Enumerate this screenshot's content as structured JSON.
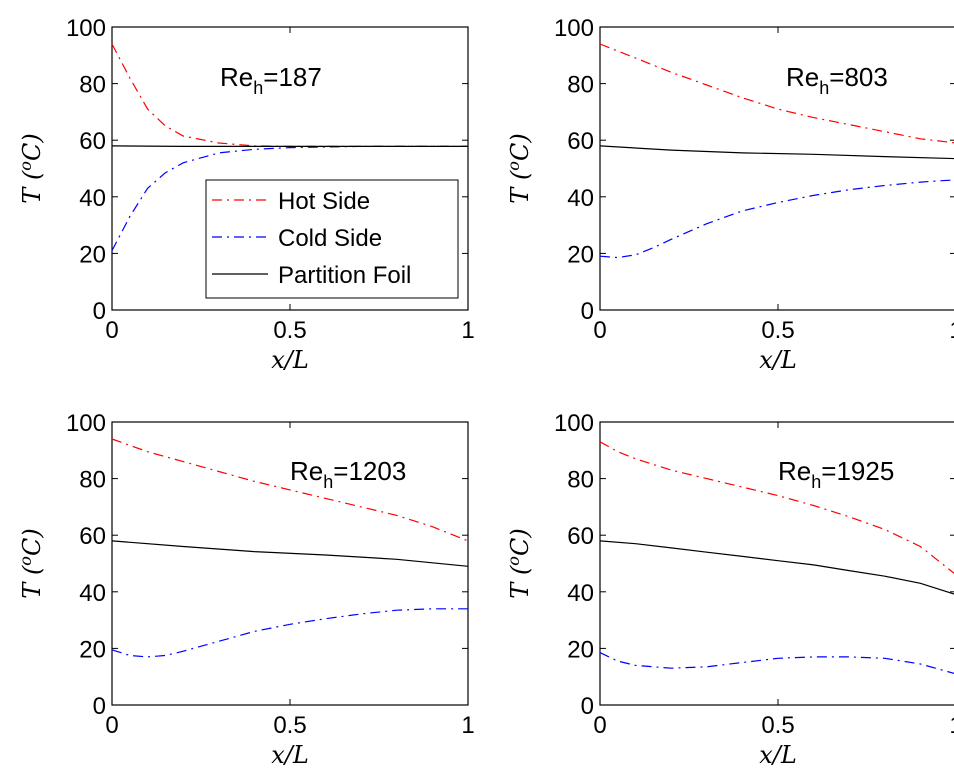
{
  "chart_data": [
    {
      "type": "line",
      "annotation": {
        "base": "Re",
        "sub": "h",
        "value": "=187"
      },
      "xlabel": "x/L",
      "ylabel": "T (oC)",
      "xlim": [
        0,
        1
      ],
      "ylim": [
        0,
        100
      ],
      "xticks": [
        "0",
        "0.5",
        "1"
      ],
      "yticks": [
        "0",
        "20",
        "40",
        "60",
        "80",
        "100"
      ],
      "legend": {
        "position": "lower-right",
        "entries": [
          "Hot Side",
          "Cold Side",
          "Partition Foil"
        ]
      },
      "series": [
        {
          "name": "Hot Side",
          "x": [
            0,
            0.05,
            0.1,
            0.15,
            0.2,
            0.3,
            0.4,
            0.5,
            0.7,
            1.0
          ],
          "values": [
            94,
            82,
            71,
            65,
            61.5,
            59,
            58,
            57.8,
            57.8,
            57.8
          ]
        },
        {
          "name": "Cold Side",
          "x": [
            0,
            0.05,
            0.1,
            0.15,
            0.2,
            0.3,
            0.4,
            0.5,
            0.7,
            1.0
          ],
          "values": [
            21,
            33,
            43,
            48.5,
            52,
            55.5,
            56.8,
            57.4,
            57.8,
            57.8
          ]
        },
        {
          "name": "Partition Foil",
          "x": [
            0,
            0.2,
            0.4,
            0.6,
            1.0
          ],
          "values": [
            58,
            57.8,
            57.8,
            57.8,
            57.8
          ]
        }
      ]
    },
    {
      "type": "line",
      "annotation": {
        "base": "Re",
        "sub": "h",
        "value": "=803"
      },
      "xlabel": "x/L",
      "ylabel": "T (oC)",
      "xlim": [
        0,
        1
      ],
      "ylim": [
        0,
        100
      ],
      "xticks": [
        "0",
        "0.5",
        "1"
      ],
      "yticks": [
        "0",
        "20",
        "40",
        "60",
        "80",
        "100"
      ],
      "series": [
        {
          "name": "Hot Side",
          "x": [
            0,
            0.1,
            0.2,
            0.3,
            0.4,
            0.5,
            0.6,
            0.7,
            0.8,
            0.9,
            1.0
          ],
          "values": [
            94,
            89,
            84,
            79.5,
            75,
            71,
            68,
            65.5,
            63,
            60.5,
            59
          ]
        },
        {
          "name": "Cold Side",
          "x": [
            0,
            0.05,
            0.1,
            0.15,
            0.2,
            0.3,
            0.4,
            0.5,
            0.6,
            0.7,
            0.8,
            0.9,
            1.0
          ],
          "values": [
            19,
            18.5,
            19.5,
            22,
            25,
            30.5,
            35,
            38,
            40.5,
            42.5,
            44,
            45.2,
            46
          ]
        },
        {
          "name": "Partition Foil",
          "x": [
            0,
            0.2,
            0.4,
            0.6,
            0.8,
            1.0
          ],
          "values": [
            58,
            56.5,
            55.5,
            55,
            54.2,
            53.5
          ]
        }
      ]
    },
    {
      "type": "line",
      "annotation": {
        "base": "Re",
        "sub": "h",
        "value": "=1203"
      },
      "xlabel": "x/L",
      "ylabel": "T (oC)",
      "xlim": [
        0,
        1
      ],
      "ylim": [
        0,
        100
      ],
      "xticks": [
        "0",
        "0.5",
        "1"
      ],
      "yticks": [
        "0",
        "20",
        "40",
        "60",
        "80",
        "100"
      ],
      "series": [
        {
          "name": "Hot Side",
          "x": [
            0,
            0.1,
            0.2,
            0.3,
            0.4,
            0.5,
            0.6,
            0.7,
            0.8,
            0.9,
            1.0
          ],
          "values": [
            94,
            89.5,
            86,
            82.5,
            79,
            76,
            73,
            70,
            67,
            63,
            58
          ]
        },
        {
          "name": "Cold Side",
          "x": [
            0,
            0.05,
            0.1,
            0.15,
            0.2,
            0.3,
            0.4,
            0.5,
            0.6,
            0.7,
            0.8,
            0.9,
            1.0
          ],
          "values": [
            19.5,
            17.5,
            17,
            17.5,
            19,
            22.5,
            26,
            28.5,
            30.5,
            32.2,
            33.5,
            34,
            34
          ]
        },
        {
          "name": "Partition Foil",
          "x": [
            0,
            0.2,
            0.4,
            0.6,
            0.8,
            1.0
          ],
          "values": [
            58,
            56,
            54.2,
            53,
            51.5,
            49
          ]
        }
      ]
    },
    {
      "type": "line",
      "annotation": {
        "base": "Re",
        "sub": "h",
        "value": "=1925"
      },
      "xlabel": "x/L",
      "ylabel": "T (oC)",
      "xlim": [
        0,
        1
      ],
      "ylim": [
        0,
        100
      ],
      "xticks": [
        "0",
        "0.5",
        "1"
      ],
      "yticks": [
        "0",
        "20",
        "40",
        "60",
        "80",
        "100"
      ],
      "series": [
        {
          "name": "Hot Side",
          "x": [
            0,
            0.05,
            0.1,
            0.2,
            0.3,
            0.4,
            0.5,
            0.6,
            0.7,
            0.8,
            0.9,
            1.0
          ],
          "values": [
            93,
            89.5,
            87,
            83,
            80,
            77,
            74,
            70.5,
            66.5,
            62,
            56,
            46
          ]
        },
        {
          "name": "Cold Side",
          "x": [
            0,
            0.05,
            0.1,
            0.2,
            0.3,
            0.4,
            0.5,
            0.6,
            0.7,
            0.8,
            0.9,
            1.0
          ],
          "values": [
            18.5,
            15.5,
            14,
            13,
            13.5,
            15,
            16.5,
            17,
            17,
            16.5,
            14.5,
            11
          ]
        },
        {
          "name": "Partition Foil",
          "x": [
            0,
            0.1,
            0.2,
            0.3,
            0.4,
            0.5,
            0.6,
            0.7,
            0.8,
            0.9,
            1.0
          ],
          "values": [
            58,
            57,
            55.5,
            54,
            52.5,
            51,
            49.5,
            47.5,
            45.5,
            43,
            39
          ]
        }
      ]
    }
  ],
  "colors": {
    "hot": "#ff0000",
    "cold": "#0000ff",
    "foil": "#000000"
  },
  "dash": {
    "hot": "10,5,2,5",
    "cold": "10,5,2,5",
    "foil": ""
  }
}
